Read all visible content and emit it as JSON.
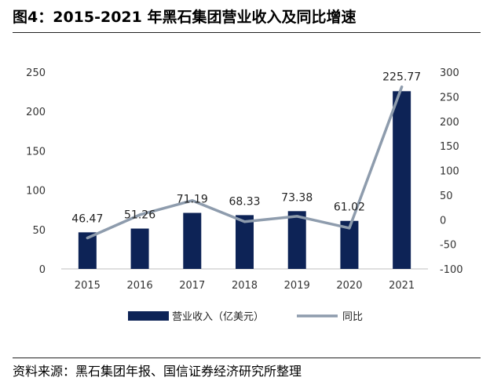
{
  "figure": {
    "title": "图4：2015-2021 年黑石集团营业收入及同比增速",
    "source": "资料来源：黑石集团年报、国信证券经济研究所整理"
  },
  "chart_data": {
    "type": "bar",
    "title": "",
    "categories": [
      "2015",
      "2016",
      "2017",
      "2018",
      "2019",
      "2020",
      "2021"
    ],
    "series": [
      {
        "name": "营业收入（亿美元）",
        "type": "bar",
        "axis": "left",
        "color": "#0d2356",
        "values": [
          46.47,
          51.26,
          71.19,
          68.33,
          73.38,
          61.02,
          225.77
        ],
        "labels": [
          "46.47",
          "51.26",
          "71.19",
          "68.33",
          "73.38",
          "61.02",
          "225.77"
        ]
      },
      {
        "name": "同比",
        "type": "line",
        "axis": "right",
        "color": "#8e9cad",
        "values": [
          -37,
          10,
          39,
          -4,
          7,
          -17,
          270
        ]
      }
    ],
    "y_left": {
      "min": 0,
      "max": 250,
      "ticks": [
        "0",
        "50",
        "100",
        "150",
        "200",
        "250"
      ]
    },
    "y_right": {
      "min": -100,
      "max": 300,
      "ticks": [
        "-100",
        "-50",
        "0",
        "50",
        "100",
        "150",
        "200",
        "250",
        "300"
      ]
    },
    "grid": false,
    "legend_position": "bottom"
  }
}
